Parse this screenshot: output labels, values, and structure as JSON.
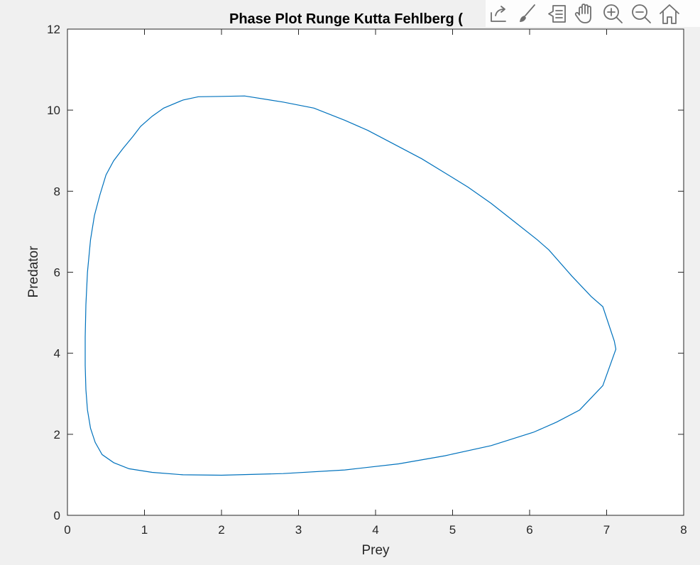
{
  "chart_data": {
    "type": "line",
    "title": "Phase Plot Runge Kutta Fehlberg (",
    "xlabel": "Prey",
    "ylabel": "Predator",
    "xlim": [
      0,
      8
    ],
    "ylim": [
      0,
      12
    ],
    "xticks": [
      0,
      1,
      2,
      3,
      4,
      5,
      6,
      7,
      8
    ],
    "yticks": [
      0,
      2,
      4,
      6,
      8,
      10,
      12
    ],
    "grid": false,
    "line_color": "#0072BD",
    "series": [
      {
        "x": [
          2.0,
          2.8,
          3.6,
          4.3,
          4.9,
          5.5,
          6.05,
          6.35,
          6.65,
          6.95,
          7.12,
          7.1,
          6.95,
          6.8,
          6.55,
          6.25,
          6.1,
          5.8,
          5.5,
          5.2,
          4.9,
          4.6,
          4.2,
          3.9,
          3.6,
          3.2,
          2.8,
          2.3,
          2.0,
          1.7,
          1.5,
          1.25,
          1.1,
          0.95,
          0.85,
          0.72,
          0.6,
          0.5,
          0.42,
          0.35,
          0.3,
          0.26,
          0.24,
          0.23,
          0.23,
          0.24,
          0.26,
          0.3,
          0.36,
          0.45,
          0.6,
          0.8,
          1.1,
          1.5,
          2.0
        ],
        "y": [
          0.99,
          1.03,
          1.12,
          1.27,
          1.47,
          1.72,
          2.05,
          2.3,
          2.6,
          3.2,
          4.1,
          4.3,
          5.15,
          5.4,
          5.9,
          6.55,
          6.8,
          7.25,
          7.7,
          8.1,
          8.45,
          8.8,
          9.2,
          9.5,
          9.75,
          10.05,
          10.2,
          10.35,
          10.34,
          10.33,
          10.25,
          10.05,
          9.85,
          9.6,
          9.35,
          9.05,
          8.75,
          8.4,
          7.9,
          7.4,
          6.8,
          6.0,
          5.2,
          4.4,
          3.7,
          3.1,
          2.6,
          2.15,
          1.8,
          1.5,
          1.3,
          1.15,
          1.06,
          1.0,
          0.99
        ]
      }
    ]
  },
  "toolbar": {
    "buttons": [
      "export-icon",
      "brush-icon",
      "datatip-icon",
      "pan-hand-icon",
      "zoom-in-icon",
      "zoom-out-icon",
      "home-icon"
    ]
  }
}
